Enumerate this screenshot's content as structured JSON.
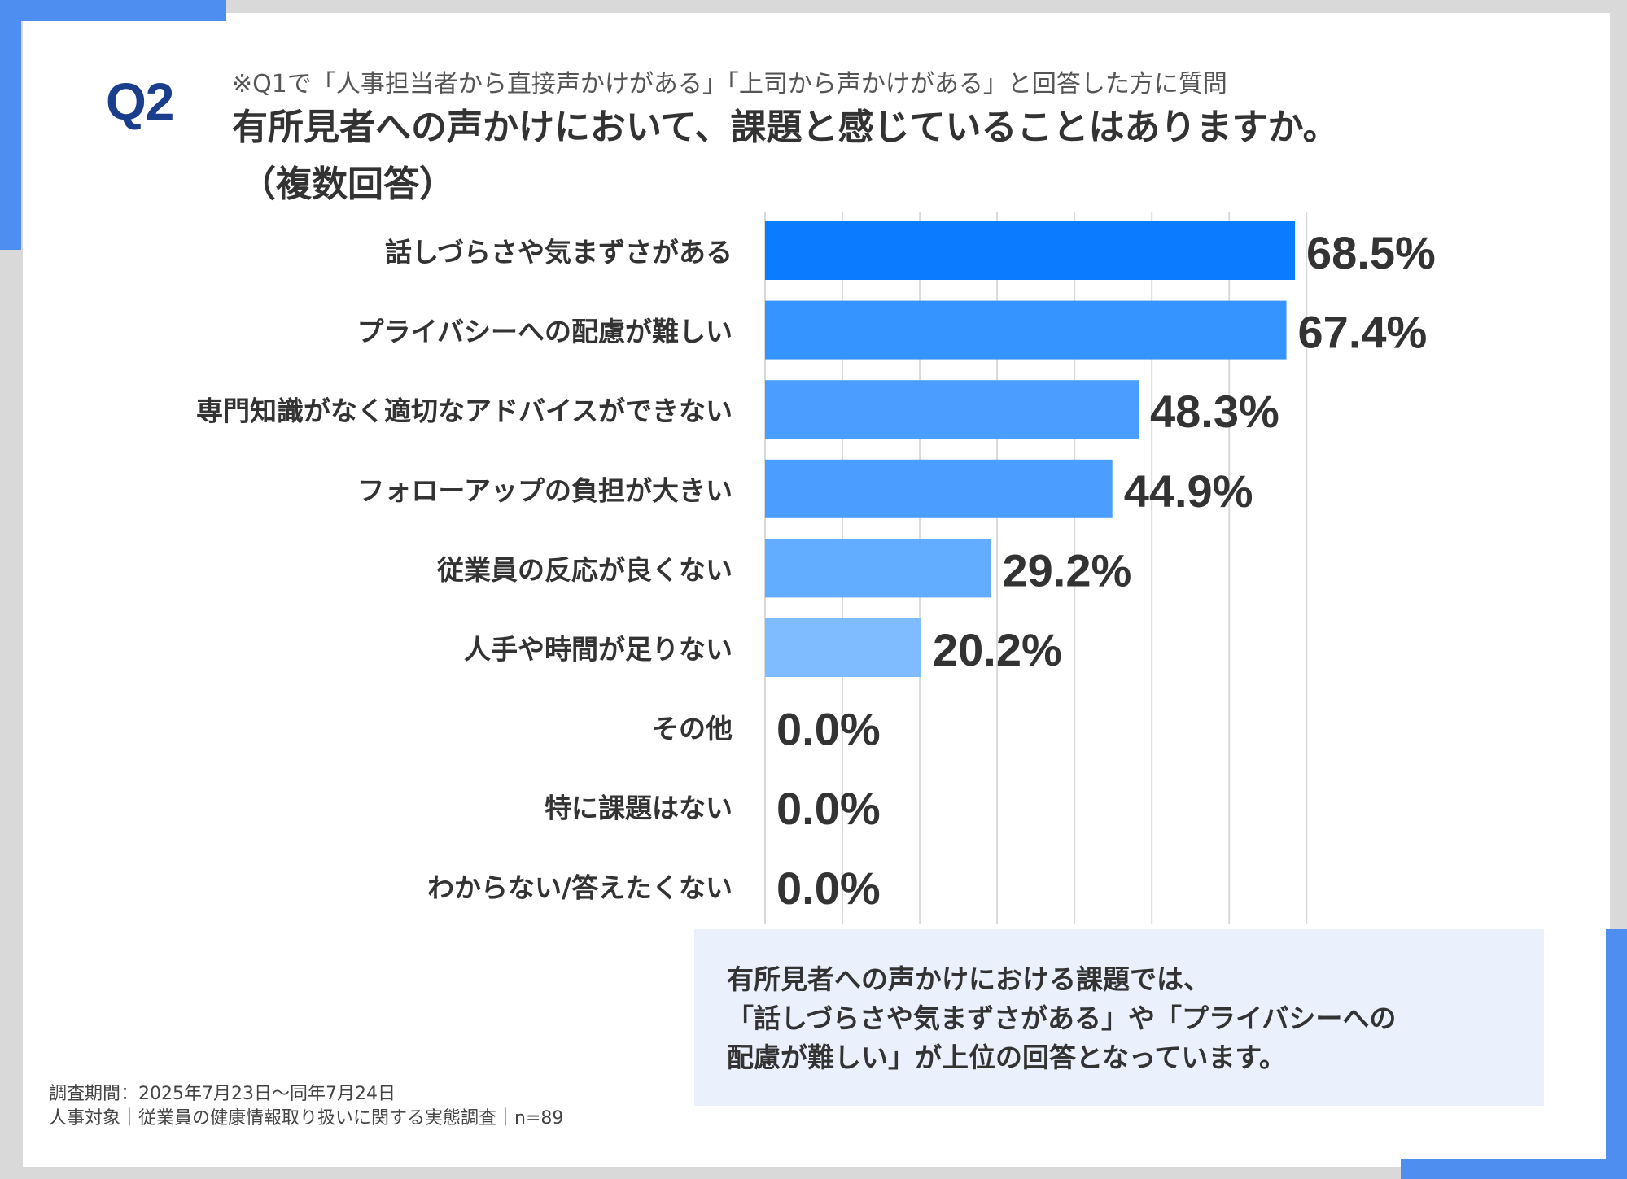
{
  "header": {
    "q_label": "Q2",
    "note": "※Q1で「人事担当者から直接声かけがある」「上司から声かけがある」と回答した方に質問",
    "title": "有所見者への声かけにおいて、課題と感じていることはありますか。",
    "title_sub": "（複数回答）"
  },
  "chart_data": {
    "type": "bar",
    "orientation": "horizontal",
    "categories": [
      "話しづらさや気まずさがある",
      "プライバシーへの配慮が難しい",
      "専門知識がなく適切なアドバイスができない",
      "フォローアップの負担が大きい",
      "従業員の反応が良くない",
      "人手や時間が足りない",
      "その他",
      "特に課題はない",
      "わからない/答えたくない"
    ],
    "values": [
      68.5,
      67.4,
      48.3,
      44.9,
      29.2,
      20.2,
      0.0,
      0.0,
      0.0
    ],
    "value_labels": [
      "68.5%",
      "67.4%",
      "48.3%",
      "44.9%",
      "29.2%",
      "20.2%",
      "0.0%",
      "0.0%",
      "0.0%"
    ],
    "bar_colors": [
      "#0a7cff",
      "#3594ff",
      "#4a9eff",
      "#4a9eff",
      "#62adff",
      "#7ebcff",
      "#7ebcff",
      "#7ebcff",
      "#7ebcff"
    ],
    "xlim": [
      0,
      70
    ],
    "grid": true,
    "xlabel": "",
    "ylabel": ""
  },
  "summary": {
    "lines": [
      "有所見者への声かけにおける課題では、",
      "「話しづらさや気まずさがある」や「プライバシーへの",
      "配慮が難しい」が上位の回答となっています。"
    ]
  },
  "footer": {
    "period": "調査期間：2025年7月23日～同年7月24日",
    "survey": "人事対象｜従業員の健康情報取り扱いに関する実態調査｜n=89"
  },
  "colors": {
    "accent": "#4d8ef0",
    "q_label": "#1a3e8c",
    "summary_bg": "#eaf1fd",
    "grid": "#d9d9d9"
  }
}
